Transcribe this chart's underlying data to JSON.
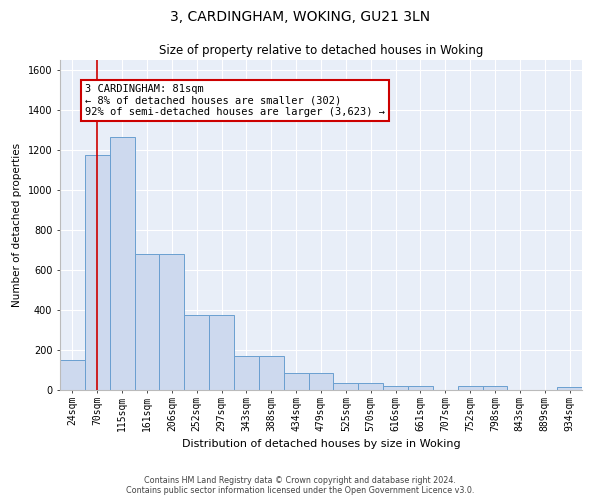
{
  "title": "3, CARDINGHAM, WOKING, GU21 3LN",
  "subtitle": "Size of property relative to detached houses in Woking",
  "xlabel": "Distribution of detached houses by size in Woking",
  "ylabel": "Number of detached properties",
  "categories": [
    "24sqm",
    "70sqm",
    "115sqm",
    "161sqm",
    "206sqm",
    "252sqm",
    "297sqm",
    "343sqm",
    "388sqm",
    "434sqm",
    "479sqm",
    "525sqm",
    "570sqm",
    "616sqm",
    "661sqm",
    "707sqm",
    "752sqm",
    "798sqm",
    "843sqm",
    "889sqm",
    "934sqm"
  ],
  "values": [
    150,
    1175,
    1265,
    680,
    680,
    375,
    375,
    170,
    170,
    85,
    85,
    35,
    35,
    22,
    22,
    0,
    18,
    18,
    0,
    0,
    15
  ],
  "bar_color": "#cdd9ee",
  "bar_edge_color": "#6a9fd0",
  "vline_x_index": 1,
  "vline_color": "#cc0000",
  "annotation_text": "3 CARDINGHAM: 81sqm\n← 8% of detached houses are smaller (302)\n92% of semi-detached houses are larger (3,623) →",
  "annotation_box_facecolor": "#ffffff",
  "annotation_box_edgecolor": "#cc0000",
  "ylim": [
    0,
    1650
  ],
  "yticks": [
    0,
    200,
    400,
    600,
    800,
    1000,
    1200,
    1400,
    1600
  ],
  "bg_color": "#e8eef8",
  "grid_color": "#ffffff",
  "footer_line1": "Contains HM Land Registry data © Crown copyright and database right 2024.",
  "footer_line2": "Contains public sector information licensed under the Open Government Licence v3.0.",
  "title_fontsize": 10,
  "subtitle_fontsize": 8.5,
  "xlabel_fontsize": 8,
  "ylabel_fontsize": 7.5,
  "tick_fontsize": 7,
  "annotation_fontsize": 7.5,
  "footer_fontsize": 5.8
}
